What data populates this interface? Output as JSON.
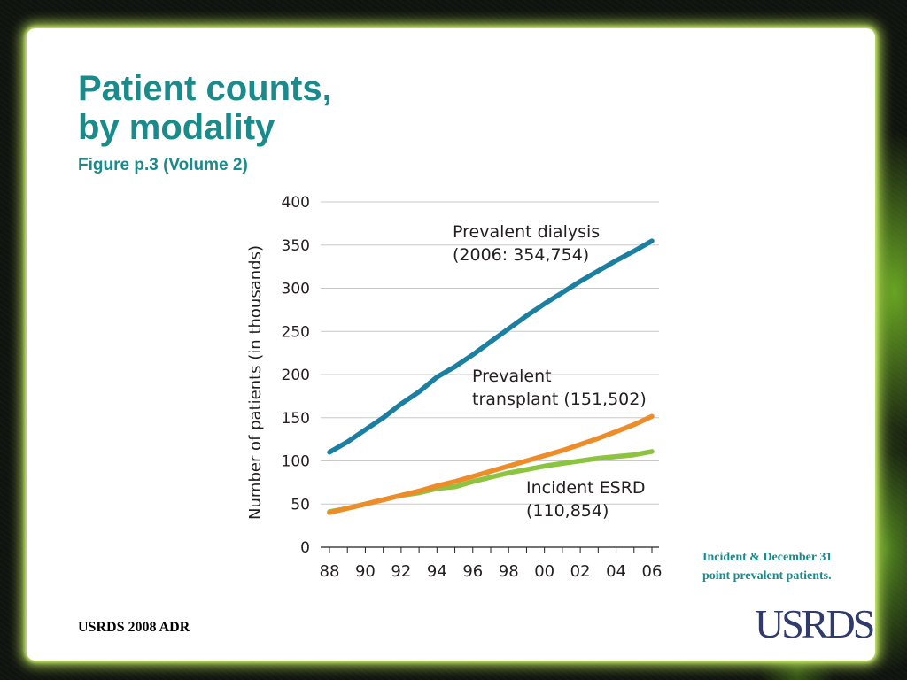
{
  "slide": {
    "title_line1": "Patient counts,",
    "title_line2": "by modality",
    "subtitle": "Figure p.3 (Volume 2)",
    "note": "Incident & December 31 point prevalent patients.",
    "footer": "USRDS 2008 ADR",
    "logo": "USRDS"
  },
  "colors": {
    "title": "#1a8a8a",
    "dialysis": "#1b7fa1",
    "transplant": "#ef8c2a",
    "incident": "#8cc43f",
    "logo": "#2f3b6b"
  },
  "chart_data": {
    "type": "line",
    "ylabel": "Number of patients (in thousands)",
    "xlabel": "",
    "ylim": [
      0,
      400
    ],
    "yticks": [
      0,
      50,
      100,
      150,
      200,
      250,
      300,
      350,
      400
    ],
    "x": [
      "88",
      "89",
      "90",
      "91",
      "92",
      "93",
      "94",
      "95",
      "96",
      "97",
      "98",
      "99",
      "00",
      "01",
      "02",
      "03",
      "04",
      "05",
      "06"
    ],
    "xtick_labels": [
      "88",
      "90",
      "92",
      "94",
      "96",
      "98",
      "00",
      "02",
      "04",
      "06"
    ],
    "grid": true,
    "series": [
      {
        "key": "dialysis",
        "label_line1": "Prevalent dialysis",
        "label_line2": "(2006: 354,754)",
        "values": [
          110,
          122,
          136,
          150,
          166,
          180,
          197,
          209,
          223,
          238,
          253,
          268,
          282,
          295,
          308,
          320,
          332,
          343,
          354.754
        ]
      },
      {
        "key": "transplant",
        "label_line1": "Prevalent",
        "label_line2": "transplant (151,502)",
        "values": [
          40,
          45,
          50,
          55,
          60,
          65,
          71,
          76,
          82,
          88,
          94,
          100,
          106,
          112,
          119,
          126,
          134,
          142,
          151.502
        ]
      },
      {
        "key": "incident",
        "label_line1": "Incident ESRD",
        "label_line2": "(110,854)",
        "values": [
          41,
          45,
          50,
          55,
          60,
          63,
          68,
          70,
          76,
          81,
          86,
          90,
          94,
          97,
          100,
          103,
          105,
          107,
          110.854
        ]
      }
    ]
  }
}
